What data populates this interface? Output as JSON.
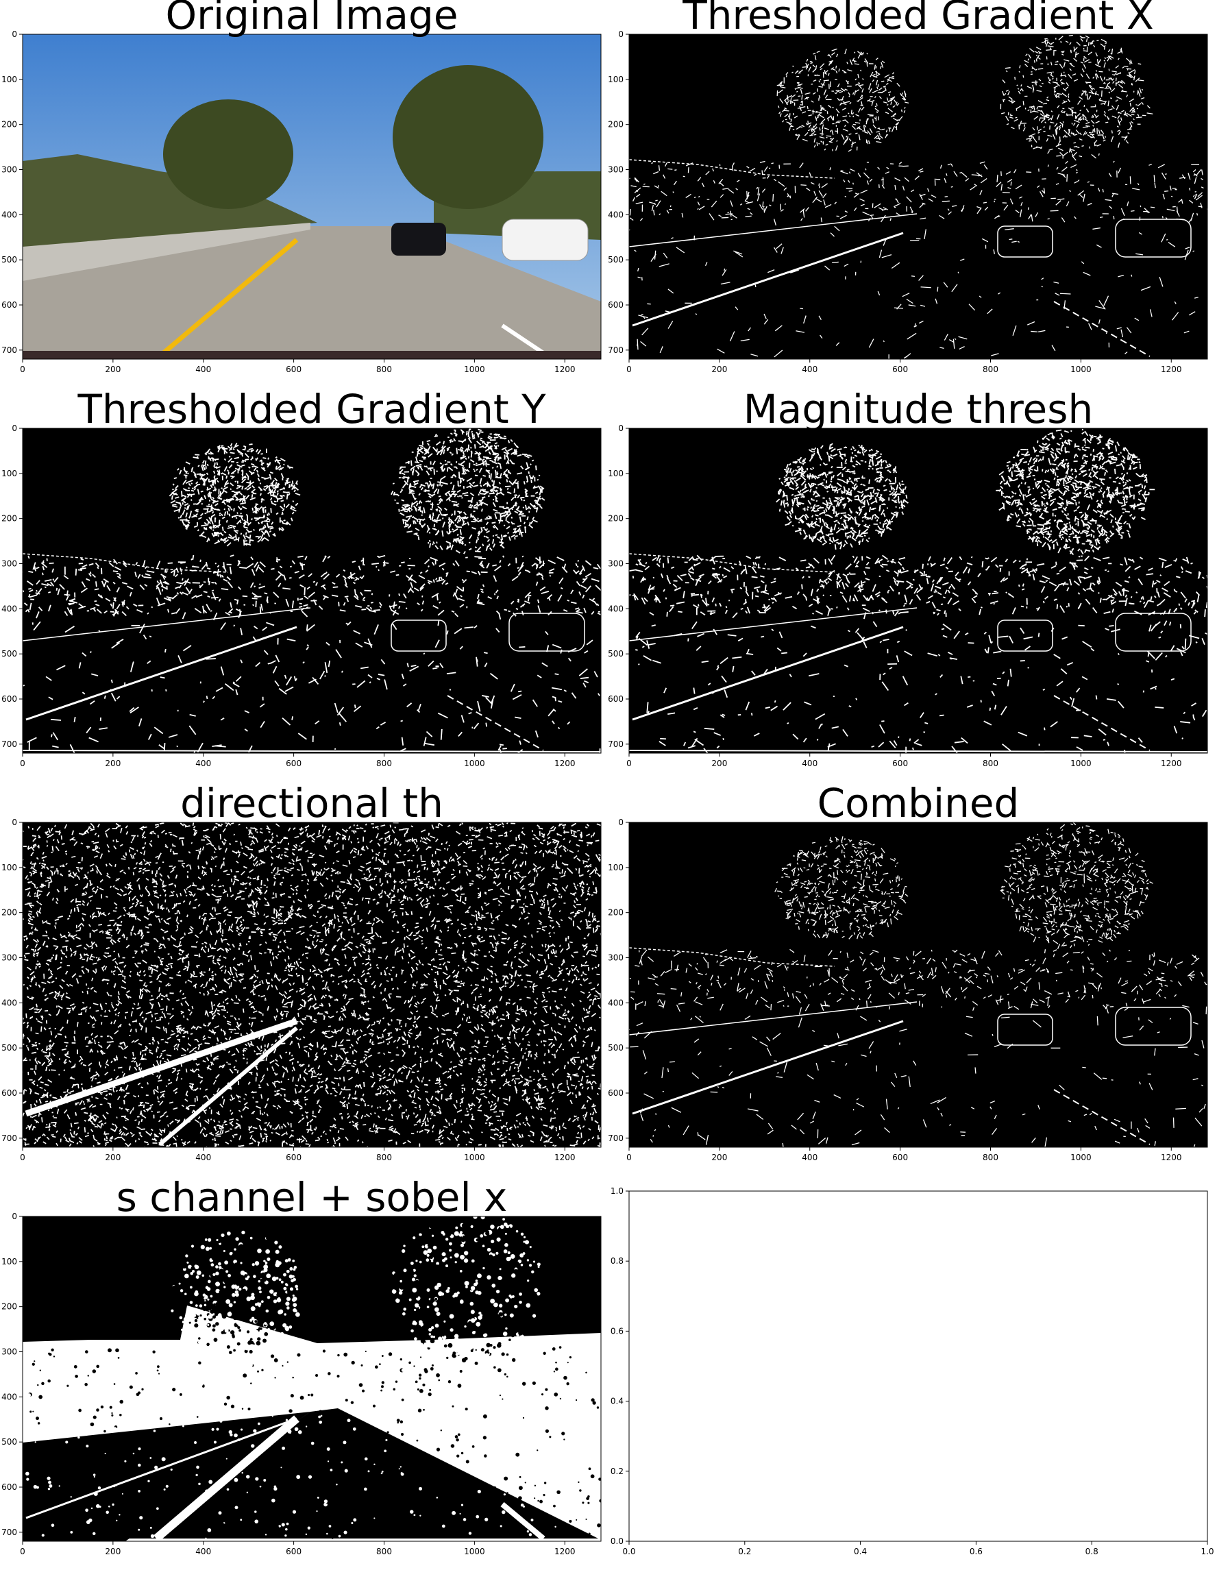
{
  "figure": {
    "panels": [
      {
        "id": "original",
        "title": "Original Image",
        "kind": "photo",
        "xticks": [
          "0",
          "200",
          "400",
          "600",
          "800",
          "1000",
          "1200"
        ],
        "yticks": [
          "0",
          "100",
          "200",
          "300",
          "400",
          "500",
          "600",
          "700"
        ]
      },
      {
        "id": "gradx",
        "title": "Thresholded Gradient X",
        "kind": "edges",
        "density": "sparse",
        "xticks": [
          "0",
          "200",
          "400",
          "600",
          "800",
          "1000",
          "1200"
        ],
        "yticks": [
          "0",
          "100",
          "200",
          "300",
          "400",
          "500",
          "600",
          "700"
        ]
      },
      {
        "id": "grady",
        "title": "Thresholded Gradient Y",
        "kind": "edges",
        "density": "medium",
        "xticks": [
          "0",
          "200",
          "400",
          "600",
          "800",
          "1000",
          "1200"
        ],
        "yticks": [
          "0",
          "100",
          "200",
          "300",
          "400",
          "500",
          "600",
          "700"
        ]
      },
      {
        "id": "mag",
        "title": "Magnitude thresh",
        "kind": "edges",
        "density": "medium",
        "xticks": [
          "0",
          "200",
          "400",
          "600",
          "800",
          "1000",
          "1200"
        ],
        "yticks": [
          "0",
          "100",
          "200",
          "300",
          "400",
          "500",
          "600",
          "700"
        ]
      },
      {
        "id": "dir",
        "title": "directional th",
        "kind": "noise",
        "density": "dense",
        "xticks": [
          "0",
          "200",
          "400",
          "600",
          "800",
          "1000",
          "1200"
        ],
        "yticks": [
          "0",
          "100",
          "200",
          "300",
          "400",
          "500",
          "600",
          "700"
        ]
      },
      {
        "id": "combined",
        "title": "Combined",
        "kind": "edges",
        "density": "sparse",
        "xticks": [
          "0",
          "200",
          "400",
          "600",
          "800",
          "1000",
          "1200"
        ],
        "yticks": [
          "0",
          "100",
          "200",
          "300",
          "400",
          "500",
          "600",
          "700"
        ]
      },
      {
        "id": "schannel",
        "title": "s channel + sobel x",
        "kind": "binary",
        "density": "heavy",
        "xticks": [
          "0",
          "200",
          "400",
          "600",
          "800",
          "1000",
          "1200"
        ],
        "yticks": [
          "0",
          "100",
          "200",
          "300",
          "400",
          "500",
          "600",
          "700"
        ]
      },
      {
        "id": "empty",
        "title": "",
        "kind": "empty",
        "xticks": [
          "0.0",
          "0.2",
          "0.4",
          "0.6",
          "0.8",
          "1.0"
        ],
        "yticks": [
          "0.0",
          "0.2",
          "0.4",
          "0.6",
          "0.8",
          "1.0"
        ]
      }
    ]
  },
  "colors": {
    "sky_top": "#3f7fcf",
    "sky_bottom": "#a9c9e8",
    "road": "#a8a39a",
    "lane_yellow": "#f2b90c",
    "foliage": "#3d4a22",
    "edge_white": "#ffffff",
    "background_black": "#000000"
  }
}
